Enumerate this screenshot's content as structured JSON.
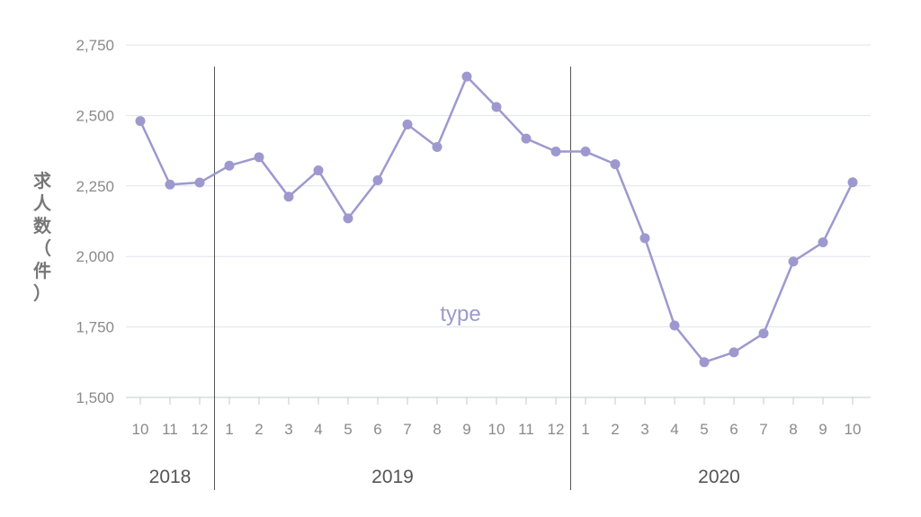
{
  "chart_data": {
    "type": "line",
    "ylabel": "求人数（件）",
    "ylim": [
      1500,
      2750
    ],
    "yticks": [
      "1,500",
      "1,750",
      "2,000",
      "2,250",
      "2,500",
      "2,750"
    ],
    "ytick_values": [
      1500,
      1750,
      2000,
      2250,
      2500,
      2750
    ],
    "categories": [
      "10",
      "11",
      "12",
      "1",
      "2",
      "3",
      "4",
      "5",
      "6",
      "7",
      "8",
      "9",
      "10",
      "11",
      "12",
      "1",
      "2",
      "3",
      "4",
      "5",
      "6",
      "7",
      "8",
      "9",
      "10"
    ],
    "year_groups": [
      {
        "label": "2018",
        "start_index": 0,
        "end_index": 2
      },
      {
        "label": "2019",
        "start_index": 3,
        "end_index": 14
      },
      {
        "label": "2020",
        "start_index": 15,
        "end_index": 24
      }
    ],
    "series": [
      {
        "name": "type",
        "values": [
          2480,
          2255,
          2262,
          2322,
          2352,
          2212,
          2305,
          2135,
          2270,
          2468,
          2388,
          2638,
          2530,
          2418,
          2372,
          2372,
          2327,
          2065,
          1755,
          1625,
          1660,
          1727,
          1982,
          2050,
          2263
        ]
      }
    ],
    "annotation": "type",
    "grid": true
  },
  "colors": {
    "series": "#9d99cf",
    "grid": "#dfe3ea",
    "axis": "#c5c9d1",
    "separator": "#555555"
  }
}
